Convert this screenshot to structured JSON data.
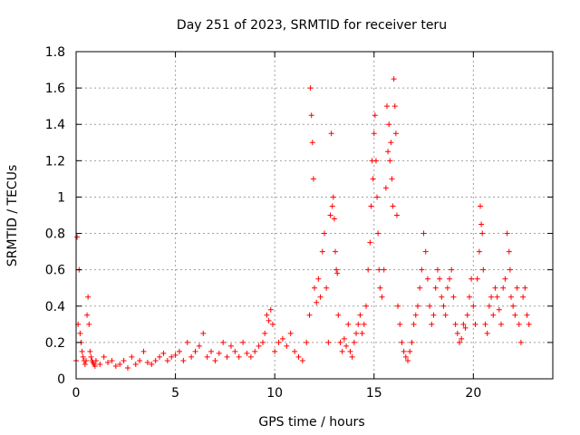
{
  "chart_data": {
    "type": "scatter",
    "title": "Day 251 of 2023, SRMTID for receiver teru",
    "xlabel": "GPS time / hours",
    "ylabel": "SRMTID / TECUs",
    "xlim": [
      0,
      24
    ],
    "ylim": [
      0,
      1.8
    ],
    "x_ticks": [
      0,
      5,
      10,
      15,
      20
    ],
    "x_tick_labels": [
      "0",
      "5",
      "10",
      "15",
      "20"
    ],
    "y_ticks": [
      0,
      0.2,
      0.4,
      0.6,
      0.8,
      1,
      1.2,
      1.4,
      1.6,
      1.8
    ],
    "y_tick_labels": [
      "0",
      "0.2",
      "0.4",
      "0.6",
      "0.8",
      "1",
      "1.2",
      "1.4",
      "1.6",
      "1.8"
    ],
    "grid": true,
    "marker": "+",
    "marker_color": "#ff0000",
    "series": [
      {
        "name": "SRMTID",
        "x": [
          0.0,
          0.05,
          0.1,
          0.15,
          0.2,
          0.25,
          0.3,
          0.35,
          0.4,
          0.45,
          0.5,
          0.55,
          0.6,
          0.65,
          0.7,
          0.75,
          0.8,
          0.85,
          0.9,
          0.95,
          1.0,
          1.2,
          1.4,
          1.6,
          1.8,
          2.0,
          2.2,
          2.4,
          2.6,
          2.8,
          3.0,
          3.2,
          3.4,
          3.6,
          3.8,
          4.0,
          4.2,
          4.4,
          4.6,
          4.8,
          5.0,
          5.2,
          5.4,
          5.6,
          5.8,
          6.0,
          6.2,
          6.4,
          6.6,
          6.8,
          7.0,
          7.2,
          7.4,
          7.6,
          7.8,
          8.0,
          8.2,
          8.4,
          8.6,
          8.8,
          9.0,
          9.2,
          9.4,
          9.5,
          9.6,
          9.7,
          9.8,
          9.9,
          10.0,
          10.2,
          10.4,
          10.6,
          10.8,
          11.0,
          11.2,
          11.4,
          11.6,
          11.75,
          11.8,
          11.85,
          11.9,
          11.95,
          12.0,
          12.1,
          12.2,
          12.3,
          12.4,
          12.5,
          12.6,
          12.7,
          12.8,
          12.85,
          12.9,
          12.95,
          13.0,
          13.05,
          13.1,
          13.15,
          13.2,
          13.3,
          13.4,
          13.5,
          13.6,
          13.7,
          13.8,
          13.9,
          14.0,
          14.1,
          14.2,
          14.3,
          14.4,
          14.5,
          14.6,
          14.7,
          14.8,
          14.85,
          14.9,
          14.95,
          15.0,
          15.05,
          15.1,
          15.15,
          15.2,
          15.25,
          15.3,
          15.4,
          15.5,
          15.6,
          15.65,
          15.7,
          15.75,
          15.8,
          15.85,
          15.9,
          15.95,
          16.0,
          16.05,
          16.1,
          16.15,
          16.2,
          16.3,
          16.4,
          16.5,
          16.6,
          16.7,
          16.8,
          16.9,
          17.0,
          17.1,
          17.2,
          17.3,
          17.4,
          17.5,
          17.6,
          17.7,
          17.8,
          17.9,
          18.0,
          18.1,
          18.2,
          18.3,
          18.4,
          18.5,
          18.6,
          18.7,
          18.8,
          18.9,
          19.0,
          19.1,
          19.2,
          19.3,
          19.4,
          19.5,
          19.6,
          19.7,
          19.8,
          19.9,
          20.0,
          20.1,
          20.2,
          20.3,
          20.35,
          20.4,
          20.45,
          20.5,
          20.6,
          20.7,
          20.8,
          20.9,
          21.0,
          21.1,
          21.2,
          21.3,
          21.4,
          21.5,
          21.6,
          21.7,
          21.8,
          21.85,
          21.9,
          22.0,
          22.1,
          22.2,
          22.3,
          22.4,
          22.5,
          22.6,
          22.7,
          22.8
        ],
        "y": [
          0.1,
          0.78,
          0.3,
          0.6,
          0.25,
          0.2,
          0.15,
          0.12,
          0.1,
          0.08,
          0.1,
          0.35,
          0.45,
          0.3,
          0.15,
          0.12,
          0.1,
          0.09,
          0.08,
          0.07,
          0.1,
          0.08,
          0.12,
          0.09,
          0.1,
          0.07,
          0.08,
          0.1,
          0.06,
          0.12,
          0.08,
          0.1,
          0.15,
          0.09,
          0.08,
          0.1,
          0.12,
          0.14,
          0.1,
          0.12,
          0.13,
          0.15,
          0.1,
          0.2,
          0.12,
          0.15,
          0.18,
          0.25,
          0.12,
          0.15,
          0.1,
          0.14,
          0.2,
          0.12,
          0.18,
          0.15,
          0.12,
          0.2,
          0.14,
          0.12,
          0.15,
          0.18,
          0.2,
          0.25,
          0.35,
          0.32,
          0.38,
          0.3,
          0.15,
          0.2,
          0.22,
          0.18,
          0.25,
          0.15,
          0.12,
          0.1,
          0.2,
          0.35,
          1.6,
          1.45,
          1.3,
          1.1,
          0.5,
          0.42,
          0.55,
          0.45,
          0.7,
          0.8,
          0.5,
          0.2,
          0.9,
          1.35,
          0.95,
          1.0,
          0.88,
          0.7,
          0.6,
          0.58,
          0.35,
          0.2,
          0.15,
          0.22,
          0.18,
          0.3,
          0.15,
          0.12,
          0.2,
          0.25,
          0.3,
          0.35,
          0.25,
          0.3,
          0.4,
          0.6,
          0.75,
          0.95,
          1.2,
          1.1,
          1.35,
          1.45,
          1.2,
          1.0,
          0.8,
          0.6,
          0.5,
          0.45,
          0.6,
          1.05,
          1.5,
          1.25,
          1.4,
          1.2,
          1.3,
          1.1,
          0.95,
          1.65,
          1.5,
          1.35,
          0.9,
          0.4,
          0.3,
          0.2,
          0.15,
          0.12,
          0.1,
          0.15,
          0.2,
          0.3,
          0.35,
          0.4,
          0.5,
          0.6,
          0.8,
          0.7,
          0.55,
          0.4,
          0.3,
          0.35,
          0.5,
          0.6,
          0.55,
          0.45,
          0.4,
          0.35,
          0.5,
          0.55,
          0.6,
          0.45,
          0.3,
          0.25,
          0.2,
          0.22,
          0.3,
          0.28,
          0.35,
          0.45,
          0.55,
          0.4,
          0.3,
          0.55,
          0.7,
          0.95,
          0.85,
          0.8,
          0.6,
          0.3,
          0.25,
          0.4,
          0.45,
          0.35,
          0.5,
          0.45,
          0.38,
          0.3,
          0.5,
          0.55,
          0.8,
          0.7,
          0.6,
          0.45,
          0.4,
          0.35,
          0.5,
          0.3,
          0.2,
          0.45,
          0.5,
          0.35,
          0.3
        ]
      }
    ]
  }
}
